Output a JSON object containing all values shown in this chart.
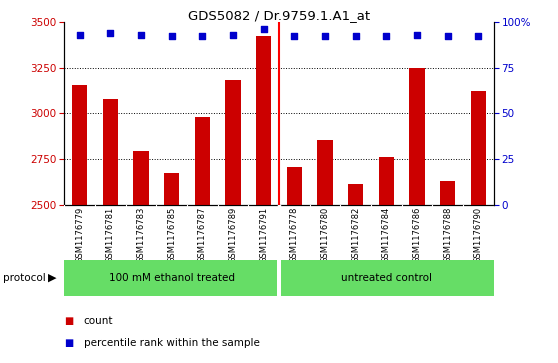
{
  "title": "GDS5082 / Dr.9759.1.A1_at",
  "samples": [
    "GSM1176779",
    "GSM1176781",
    "GSM1176783",
    "GSM1176785",
    "GSM1176787",
    "GSM1176789",
    "GSM1176791",
    "GSM1176778",
    "GSM1176780",
    "GSM1176782",
    "GSM1176784",
    "GSM1176786",
    "GSM1176788",
    "GSM1176790"
  ],
  "counts": [
    3155,
    3080,
    2795,
    2675,
    2980,
    3185,
    3420,
    2710,
    2855,
    2615,
    2760,
    3250,
    2630,
    3120
  ],
  "percentiles": [
    93,
    94,
    93,
    92,
    92,
    93,
    96,
    92,
    92,
    92,
    92,
    93,
    92,
    92
  ],
  "bar_color": "#CC0000",
  "dot_color": "#0000CC",
  "ylim_left": [
    2500,
    3500
  ],
  "ylim_right": [
    0,
    100
  ],
  "yticks_left": [
    2500,
    2750,
    3000,
    3250,
    3500
  ],
  "yticks_right": [
    0,
    25,
    50,
    75,
    100
  ],
  "yticks_right_labels": [
    "0",
    "25",
    "50",
    "75",
    "100%"
  ],
  "grid_lines": [
    2750,
    3000,
    3250
  ],
  "bg_color": "#C8C8C8",
  "plot_bg": "#FFFFFF",
  "bar_width": 0.5,
  "group1_label": "100 mM ethanol treated",
  "group2_label": "untreated control",
  "group1_count": 7,
  "group2_count": 7,
  "protocol_label": "protocol",
  "legend_count_label": "count",
  "legend_pct_label": "percentile rank within the sample",
  "legend_count_color": "#CC0000",
  "legend_pct_color": "#0000CC",
  "green_color": "#66DD66"
}
